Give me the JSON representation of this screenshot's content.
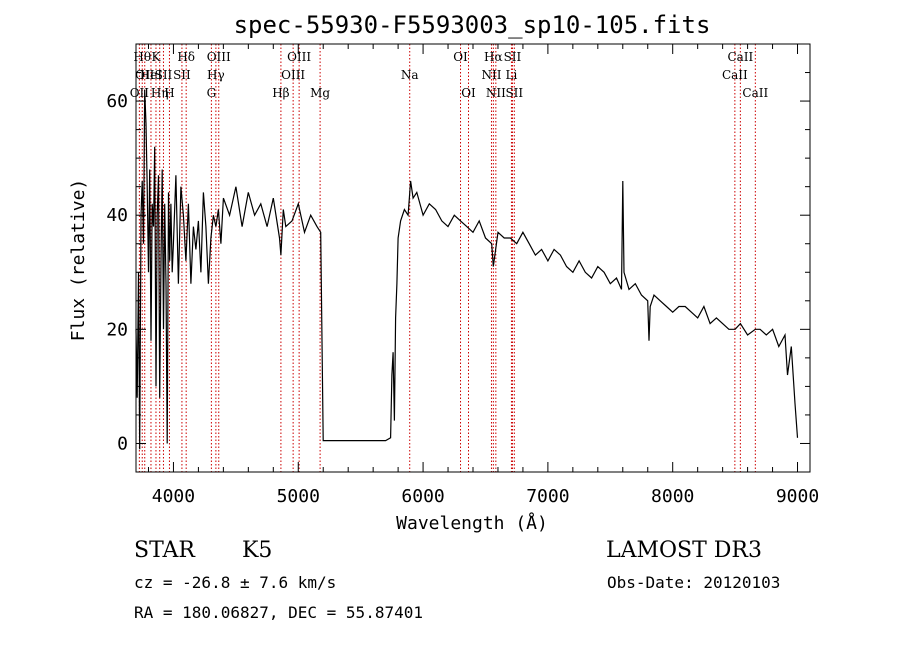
{
  "chart_data": {
    "type": "line",
    "title": "spec-55930-F5593003_sp10-105.fits",
    "xlabel": "Wavelength (Å)",
    "ylabel": "Flux (relative)",
    "xlim": [
      3700,
      9100
    ],
    "ylim": [
      -5,
      70
    ],
    "xticks": [
      4000,
      5000,
      6000,
      7000,
      8000,
      9000
    ],
    "yticks": [
      0,
      20,
      40,
      60
    ],
    "series": [
      {
        "name": "spectrum",
        "x": [
          3700,
          3710,
          3720,
          3730,
          3740,
          3750,
          3760,
          3770,
          3780,
          3790,
          3800,
          3810,
          3820,
          3830,
          3840,
          3850,
          3860,
          3870,
          3880,
          3890,
          3900,
          3910,
          3920,
          3930,
          3940,
          3950,
          3960,
          3970,
          3980,
          3990,
          4000,
          4020,
          4040,
          4060,
          4080,
          4100,
          4120,
          4140,
          4160,
          4180,
          4200,
          4220,
          4240,
          4260,
          4280,
          4300,
          4320,
          4340,
          4360,
          4380,
          4400,
          4450,
          4500,
          4550,
          4600,
          4650,
          4700,
          4750,
          4800,
          4850,
          4861,
          4880,
          4900,
          4950,
          5000,
          5050,
          5100,
          5150,
          5180,
          5200,
          5210,
          5300,
          5400,
          5500,
          5600,
          5700,
          5740,
          5750,
          5760,
          5770,
          5780,
          5790,
          5800,
          5820,
          5850,
          5880,
          5900,
          5920,
          5950,
          6000,
          6050,
          6100,
          6150,
          6200,
          6250,
          6300,
          6350,
          6400,
          6450,
          6500,
          6550,
          6563,
          6600,
          6650,
          6700,
          6750,
          6800,
          6850,
          6900,
          6950,
          7000,
          7050,
          7100,
          7150,
          7200,
          7250,
          7300,
          7350,
          7400,
          7450,
          7500,
          7550,
          7590,
          7600,
          7610,
          7650,
          7700,
          7750,
          7800,
          7810,
          7820,
          7850,
          7900,
          7950,
          8000,
          8050,
          8100,
          8150,
          8200,
          8250,
          8300,
          8350,
          8400,
          8450,
          8500,
          8542,
          8600,
          8662,
          8700,
          8750,
          8800,
          8850,
          8900,
          8920,
          8950,
          8980,
          9000
        ],
        "y": [
          20,
          8,
          30,
          -1,
          40,
          46,
          35,
          62,
          56,
          45,
          30,
          48,
          18,
          42,
          38,
          52,
          10,
          40,
          47,
          8,
          32,
          48,
          20,
          42,
          28,
          0,
          44,
          32,
          42,
          30,
          35,
          47,
          28,
          45,
          40,
          32,
          42,
          28,
          38,
          34,
          39,
          30,
          44,
          38,
          28,
          36,
          40,
          38,
          41,
          35,
          43,
          40,
          45,
          38,
          44,
          40,
          42,
          38,
          43,
          36,
          33,
          41,
          38,
          39,
          42,
          37,
          40,
          38,
          37,
          0.5,
          0.5,
          0.5,
          0.5,
          0.5,
          0.5,
          0.5,
          1,
          12,
          16,
          4,
          22,
          28,
          36,
          39,
          41,
          40,
          46,
          43,
          44,
          40,
          42,
          41,
          39,
          38,
          40,
          39,
          38,
          37,
          39,
          36,
          35,
          31,
          37,
          36,
          36,
          35,
          37,
          35,
          33,
          34,
          32,
          34,
          33,
          31,
          30,
          32,
          30,
          29,
          31,
          30,
          28,
          29,
          27,
          46,
          30,
          27,
          28,
          26,
          25,
          18,
          24,
          26,
          25,
          24,
          23,
          24,
          24,
          23,
          22,
          24,
          21,
          22,
          21,
          20,
          20,
          21,
          19,
          20,
          20,
          19,
          20,
          17,
          19,
          12,
          17,
          7,
          1
        ]
      }
    ],
    "lines": [
      {
        "name": "OII",
        "wave": 3727,
        "row": 2
      },
      {
        "name": "Hθ",
        "wave": 3750,
        "row": 0
      },
      {
        "name": "OII",
        "wave": 3770,
        "row": 1
      },
      {
        "name": "HeI",
        "wave": 3820,
        "row": 1
      },
      {
        "name": "K",
        "wave": 3860,
        "row": 0
      },
      {
        "name": "Hη",
        "wave": 3890,
        "row": 2
      },
      {
        "name": "SII",
        "wave": 3920,
        "row": 1
      },
      {
        "name": "H",
        "wave": 3968,
        "row": 2
      },
      {
        "name": "Hδ",
        "wave": 4102,
        "row": 0
      },
      {
        "name": "SII",
        "wave": 4068,
        "row": 1
      },
      {
        "name": "OIII",
        "wave": 4363,
        "row": 0
      },
      {
        "name": "Hγ",
        "wave": 4340,
        "row": 1
      },
      {
        "name": "G",
        "wave": 4304,
        "row": 2
      },
      {
        "name": "Hβ",
        "wave": 4861,
        "row": 2
      },
      {
        "name": "OIII",
        "wave": 5007,
        "row": 0
      },
      {
        "name": "OIII",
        "wave": 4959,
        "row": 1
      },
      {
        "name": "Mg",
        "wave": 5175,
        "row": 2
      },
      {
        "name": "Na",
        "wave": 5893,
        "row": 1
      },
      {
        "name": "OI",
        "wave": 6300,
        "row": 0
      },
      {
        "name": "OI",
        "wave": 6364,
        "row": 2
      },
      {
        "name": "Hα",
        "wave": 6563,
        "row": 0
      },
      {
        "name": "NII",
        "wave": 6548,
        "row": 1
      },
      {
        "name": "NII",
        "wave": 6583,
        "row": 2
      },
      {
        "name": "SII",
        "wave": 6716,
        "row": 0
      },
      {
        "name": "Li",
        "wave": 6708,
        "row": 1
      },
      {
        "name": "SII",
        "wave": 6731,
        "row": 2
      },
      {
        "name": "CaII",
        "wave": 8542,
        "row": 0
      },
      {
        "name": "CaII",
        "wave": 8498,
        "row": 1
      },
      {
        "name": "CaII",
        "wave": 8662,
        "row": 2
      }
    ]
  },
  "info": {
    "object_type": "STAR",
    "object_class": "K5",
    "survey": "LAMOST DR3",
    "cz": "cz = -26.8 ± 7.6 km/s",
    "obs_date": "Obs-Date: 20120103",
    "radec": "RA = 180.06827, DEC =  55.87401"
  },
  "colors": {
    "spectrum": "#000000",
    "line_markers": "#cc0000",
    "axes": "#000000"
  }
}
